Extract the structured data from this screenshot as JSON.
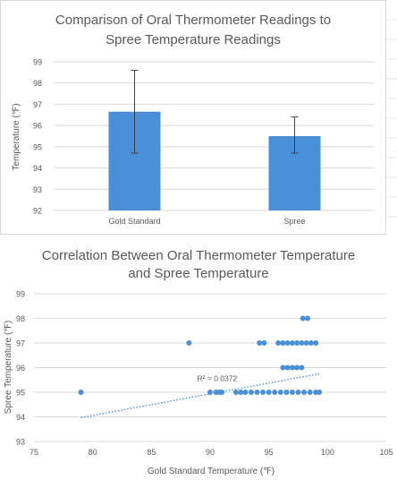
{
  "chart_data": [
    {
      "type": "bar",
      "title_line1": "Comparison of Oral Thermometer Readings to",
      "title_line2": "Spree Temperature Readings",
      "xlabel": "",
      "ylabel": "Temperature (℉)",
      "categories": [
        "Gold Standard",
        "Spree"
      ],
      "values": [
        96.65,
        95.5
      ],
      "error_low": [
        94.7,
        94.7
      ],
      "error_high": [
        98.6,
        96.4
      ],
      "ylim": [
        92,
        99
      ],
      "yticks": [
        92,
        93,
        94,
        95,
        96,
        97,
        98,
        99
      ],
      "grid": true,
      "bar_color": "#4a90d9"
    },
    {
      "type": "scatter",
      "title_line1": "Correlation Between Oral Thermometer Temperature",
      "title_line2": "and Spree Temperature",
      "xlabel": "Gold Standard Temperature (℉)",
      "ylabel": "Spree Temperature (℉)",
      "xlim": [
        75,
        105
      ],
      "ylim": [
        93,
        99
      ],
      "xticks": [
        75,
        80,
        85,
        90,
        95,
        100,
        105
      ],
      "yticks": [
        93,
        94,
        95,
        96,
        97,
        98,
        99
      ],
      "grid": true,
      "point_color": "#4a90d9",
      "points": [
        [
          79,
          95
        ],
        [
          88.2,
          97
        ],
        [
          90,
          95
        ],
        [
          90.5,
          95
        ],
        [
          90.8,
          95
        ],
        [
          91,
          95
        ],
        [
          92.2,
          95
        ],
        [
          92.6,
          95
        ],
        [
          93,
          95
        ],
        [
          93.5,
          95
        ],
        [
          94,
          95
        ],
        [
          94.5,
          95
        ],
        [
          95,
          95
        ],
        [
          95.5,
          95
        ],
        [
          96,
          95
        ],
        [
          96.5,
          95
        ],
        [
          97,
          95
        ],
        [
          97.5,
          95
        ],
        [
          98,
          95
        ],
        [
          98.5,
          95
        ],
        [
          99,
          95
        ],
        [
          99.3,
          95
        ],
        [
          94.2,
          97
        ],
        [
          94.6,
          97
        ],
        [
          95.8,
          97
        ],
        [
          96.2,
          97
        ],
        [
          96.6,
          97
        ],
        [
          97,
          97
        ],
        [
          97.4,
          97
        ],
        [
          97.8,
          97
        ],
        [
          98.2,
          97
        ],
        [
          98.6,
          97
        ],
        [
          99,
          97
        ],
        [
          96.2,
          96
        ],
        [
          96.6,
          96
        ],
        [
          97,
          96
        ],
        [
          97.4,
          96
        ],
        [
          97.8,
          96
        ],
        [
          97.9,
          98
        ],
        [
          98.3,
          98
        ]
      ],
      "trendline_x": [
        79,
        99.3
      ],
      "trendline_y": [
        93.97,
        95.75
      ],
      "trend_label": "R² = 0.0372",
      "trend_label_at": [
        92.3,
        95.45
      ]
    }
  ]
}
